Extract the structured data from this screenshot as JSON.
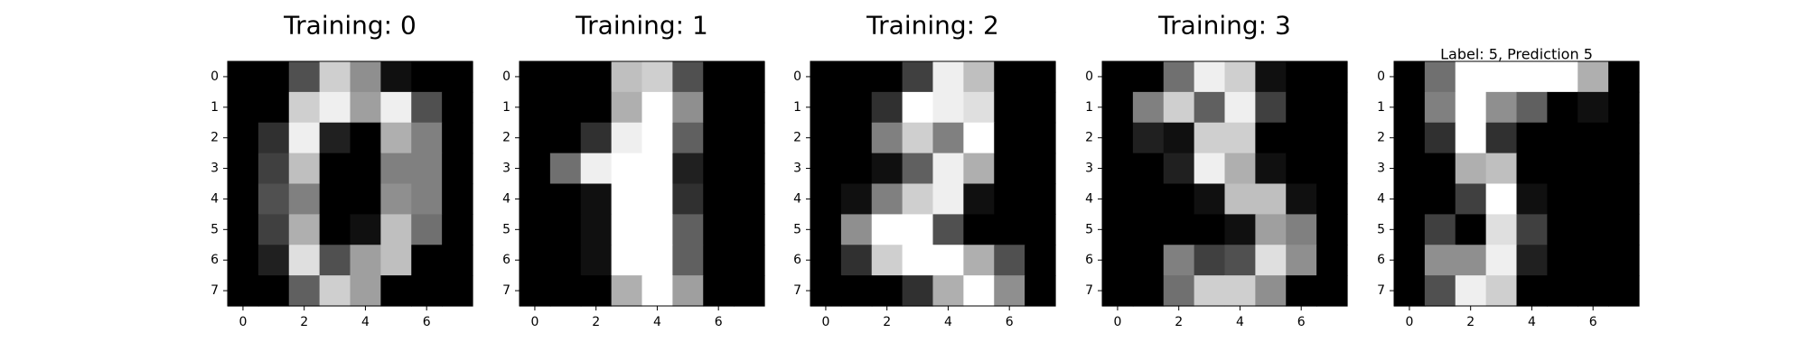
{
  "chart_data": [
    {
      "type": "heatmap",
      "title": "Training: 0",
      "colormap": "gray",
      "value_range": [
        0,
        16
      ],
      "xticks": [
        "0",
        "2",
        "4",
        "6"
      ],
      "yticks": [
        "0",
        "1",
        "2",
        "3",
        "4",
        "5",
        "6",
        "7"
      ],
      "values": [
        [
          0,
          0,
          5,
          13,
          9,
          1,
          0,
          0
        ],
        [
          0,
          0,
          13,
          15,
          10,
          15,
          5,
          0
        ],
        [
          0,
          3,
          15,
          2,
          0,
          11,
          8,
          0
        ],
        [
          0,
          4,
          12,
          0,
          0,
          8,
          8,
          0
        ],
        [
          0,
          5,
          8,
          0,
          0,
          9,
          8,
          0
        ],
        [
          0,
          4,
          11,
          0,
          1,
          12,
          7,
          0
        ],
        [
          0,
          2,
          14,
          5,
          10,
          12,
          0,
          0
        ],
        [
          0,
          0,
          6,
          13,
          10,
          0,
          0,
          0
        ]
      ]
    },
    {
      "type": "heatmap",
      "title": "Training: 1",
      "colormap": "gray",
      "value_range": [
        0,
        16
      ],
      "xticks": [
        "0",
        "2",
        "4",
        "6"
      ],
      "yticks": [
        "0",
        "1",
        "2",
        "3",
        "4",
        "5",
        "6",
        "7"
      ],
      "values": [
        [
          0,
          0,
          0,
          12,
          13,
          5,
          0,
          0
        ],
        [
          0,
          0,
          0,
          11,
          16,
          9,
          0,
          0
        ],
        [
          0,
          0,
          3,
          15,
          16,
          6,
          0,
          0
        ],
        [
          0,
          7,
          15,
          16,
          16,
          2,
          0,
          0
        ],
        [
          0,
          0,
          1,
          16,
          16,
          3,
          0,
          0
        ],
        [
          0,
          0,
          1,
          16,
          16,
          6,
          0,
          0
        ],
        [
          0,
          0,
          1,
          16,
          16,
          6,
          0,
          0
        ],
        [
          0,
          0,
          0,
          11,
          16,
          10,
          0,
          0
        ]
      ]
    },
    {
      "type": "heatmap",
      "title": "Training: 2",
      "colormap": "gray",
      "value_range": [
        0,
        16
      ],
      "xticks": [
        "0",
        "2",
        "4",
        "6"
      ],
      "yticks": [
        "0",
        "1",
        "2",
        "3",
        "4",
        "5",
        "6",
        "7"
      ],
      "values": [
        [
          0,
          0,
          0,
          4,
          15,
          12,
          0,
          0
        ],
        [
          0,
          0,
          3,
          16,
          15,
          14,
          0,
          0
        ],
        [
          0,
          0,
          8,
          13,
          8,
          16,
          0,
          0
        ],
        [
          0,
          0,
          1,
          6,
          15,
          11,
          0,
          0
        ],
        [
          0,
          1,
          8,
          13,
          15,
          1,
          0,
          0
        ],
        [
          0,
          9,
          16,
          16,
          5,
          0,
          0,
          0
        ],
        [
          0,
          3,
          13,
          16,
          16,
          11,
          5,
          0
        ],
        [
          0,
          0,
          0,
          3,
          11,
          16,
          9,
          0
        ]
      ]
    },
    {
      "type": "heatmap",
      "title": "Training: 3",
      "colormap": "gray",
      "value_range": [
        0,
        16
      ],
      "xticks": [
        "0",
        "2",
        "4",
        "6"
      ],
      "yticks": [
        "0",
        "1",
        "2",
        "3",
        "4",
        "5",
        "6",
        "7"
      ],
      "values": [
        [
          0,
          0,
          7,
          15,
          13,
          1,
          0,
          0
        ],
        [
          0,
          8,
          13,
          6,
          15,
          4,
          0,
          0
        ],
        [
          0,
          2,
          1,
          13,
          13,
          0,
          0,
          0
        ],
        [
          0,
          0,
          2,
          15,
          11,
          1,
          0,
          0
        ],
        [
          0,
          0,
          0,
          1,
          12,
          12,
          1,
          0
        ],
        [
          0,
          0,
          0,
          0,
          1,
          10,
          8,
          0
        ],
        [
          0,
          0,
          8,
          4,
          5,
          14,
          9,
          0
        ],
        [
          0,
          0,
          7,
          13,
          13,
          9,
          0,
          0
        ]
      ]
    },
    {
      "type": "heatmap",
      "title": "Label: 5, Prediction 5",
      "colormap": "gray",
      "value_range": [
        0,
        16
      ],
      "xticks": [
        "0",
        "2",
        "4",
        "6"
      ],
      "yticks": [
        "0",
        "1",
        "2",
        "3",
        "4",
        "5",
        "6",
        "7"
      ],
      "values": [
        [
          0,
          7,
          16,
          16,
          16,
          16,
          11,
          0
        ],
        [
          0,
          8,
          16,
          9,
          6,
          0,
          1,
          0
        ],
        [
          0,
          3,
          16,
          3,
          0,
          0,
          0,
          0
        ],
        [
          0,
          0,
          11,
          12,
          0,
          0,
          0,
          0
        ],
        [
          0,
          0,
          4,
          16,
          1,
          0,
          0,
          0
        ],
        [
          0,
          4,
          0,
          14,
          4,
          0,
          0,
          0
        ],
        [
          0,
          9,
          9,
          15,
          2,
          0,
          0,
          0
        ],
        [
          0,
          5,
          15,
          13,
          0,
          0,
          0,
          0
        ]
      ]
    }
  ]
}
